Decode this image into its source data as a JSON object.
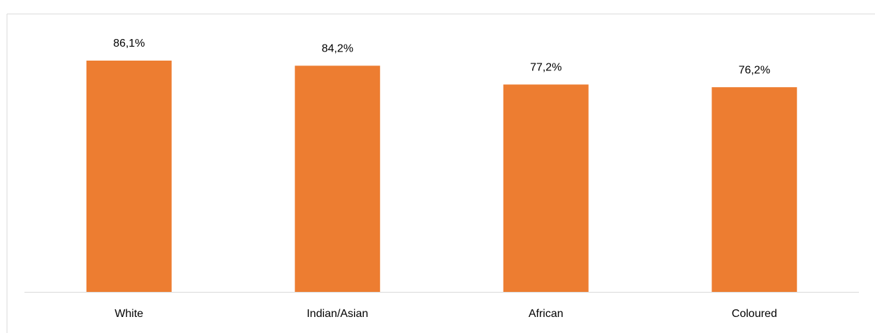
{
  "chart_data": {
    "type": "bar",
    "categories": [
      "White",
      "Indian/Asian",
      "African",
      "Coloured"
    ],
    "values": [
      86.1,
      84.2,
      77.2,
      76.2
    ],
    "value_labels": [
      "86,1%",
      "84,2%",
      "77,2%",
      "76,2%"
    ],
    "color": "#ed7d31",
    "ylim": [
      0,
      100
    ]
  }
}
